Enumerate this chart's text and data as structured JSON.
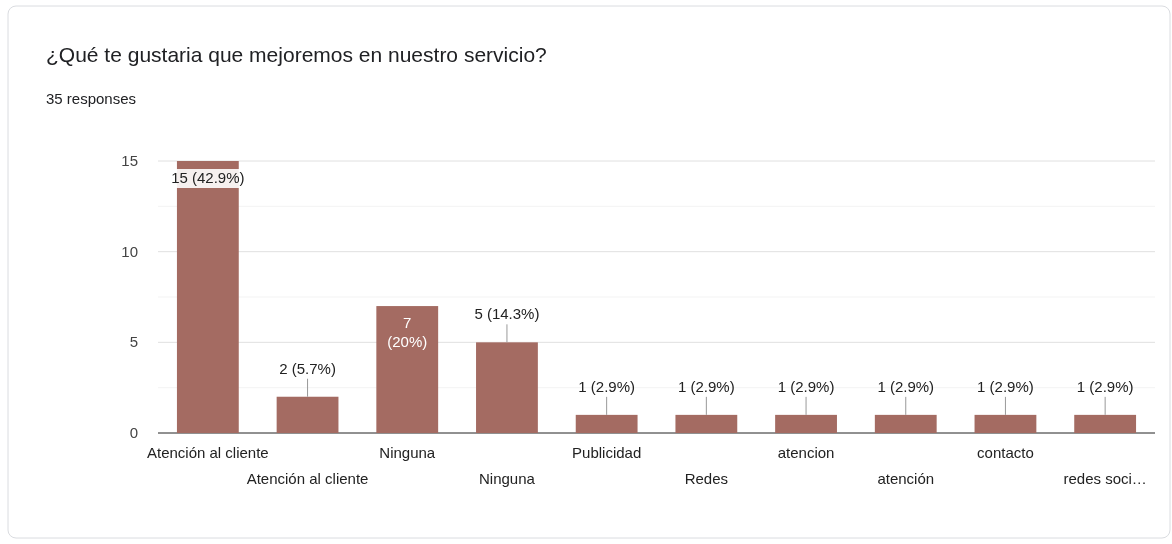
{
  "chart_data": {
    "type": "bar",
    "title": "¿Qué te gustaria que mejoremos en nuestro servicio?",
    "subtitle": "35 responses",
    "categories": [
      "Atención al cliente",
      "Atención al cliente",
      "Ninguna",
      "Ninguna",
      "Publicidad",
      "Redes",
      "atencion",
      "atención",
      "contacto",
      "redes soci…"
    ],
    "values": [
      15,
      2,
      7,
      5,
      1,
      1,
      1,
      1,
      1,
      1
    ],
    "value_labels": [
      "15 (42.9%)",
      "2 (5.7%)",
      "7 (20%)",
      "5 (14.3%)",
      "1 (2.9%)",
      "1 (2.9%)",
      "1 (2.9%)",
      "1 (2.9%)",
      "1 (2.9%)",
      "1 (2.9%)"
    ],
    "color": "#a46b62",
    "ylim": [
      0,
      15
    ],
    "yticks": [
      0,
      {
        "value": 2.5,
        "label": null
      },
      5,
      {
        "value": 7.5,
        "label": null
      },
      10,
      {
        "value": 12.5,
        "label": null
      },
      15
    ],
    "grid": true
  }
}
